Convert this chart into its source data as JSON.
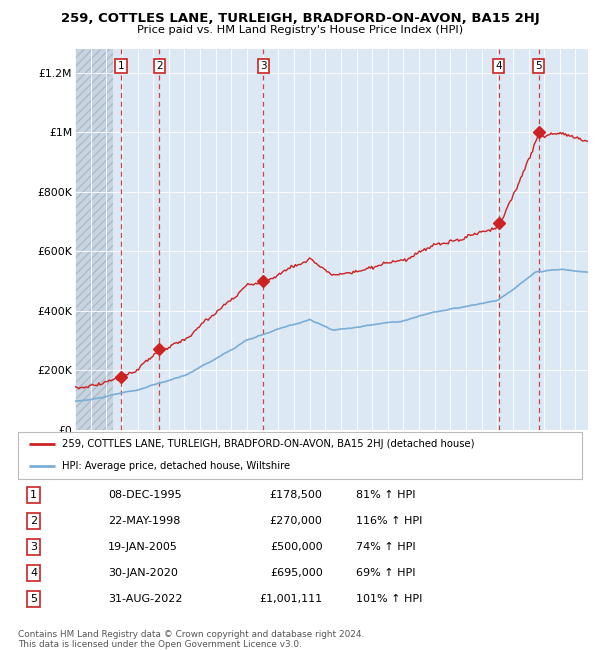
{
  "title": "259, COTTLES LANE, TURLEIGH, BRADFORD-ON-AVON, BA15 2HJ",
  "subtitle": "Price paid vs. HM Land Registry's House Price Index (HPI)",
  "plot_bg_color": "#dce8f4",
  "hatch_bg_color": "#c8d4e0",
  "hpi_line_color": "#7aaed6",
  "price_line_color": "#cc2222",
  "marker_color": "#cc2222",
  "dashed_line_color": "#cc4444",
  "xmin": 1993.0,
  "xmax": 2025.8,
  "ymin": 0,
  "ymax": 1280000,
  "yticks": [
    0,
    200000,
    400000,
    600000,
    800000,
    1000000,
    1200000
  ],
  "ytick_labels": [
    "£0",
    "£200K",
    "£400K",
    "£600K",
    "£800K",
    "£1M",
    "£1.2M"
  ],
  "xtick_start": 1993,
  "xtick_end": 2025,
  "hatch_end": 1995.4,
  "transactions": [
    {
      "num": 1,
      "year": 1995.94,
      "price": 178500
    },
    {
      "num": 2,
      "year": 1998.39,
      "price": 270000
    },
    {
      "num": 3,
      "year": 2005.05,
      "price": 500000
    },
    {
      "num": 4,
      "year": 2020.08,
      "price": 695000
    },
    {
      "num": 5,
      "year": 2022.66,
      "price": 1001111
    }
  ],
  "legend_line1": "259, COTTLES LANE, TURLEIGH, BRADFORD-ON-AVON, BA15 2HJ (detached house)",
  "legend_line2": "HPI: Average price, detached house, Wiltshire",
  "table_rows": [
    [
      "1",
      "08-DEC-1995",
      "£178,500",
      "81% ↑ HPI"
    ],
    [
      "2",
      "22-MAY-1998",
      "£270,000",
      "116% ↑ HPI"
    ],
    [
      "3",
      "19-JAN-2005",
      "£500,000",
      "74% ↑ HPI"
    ],
    [
      "4",
      "30-JAN-2020",
      "£695,000",
      "69% ↑ HPI"
    ],
    [
      "5",
      "31-AUG-2022",
      "£1,001,111",
      "101% ↑ HPI"
    ]
  ],
  "footer": "Contains HM Land Registry data © Crown copyright and database right 2024.\nThis data is licensed under the Open Government Licence v3.0."
}
